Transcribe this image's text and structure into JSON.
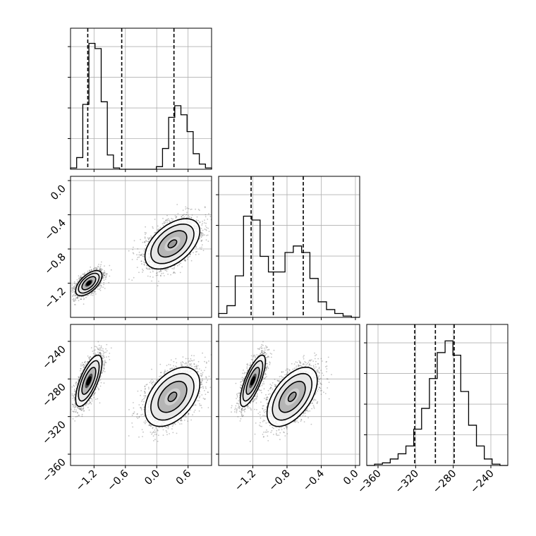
{
  "chart_data": {
    "type": "scatter",
    "parameters": [
      {
        "ylabel": "",
        "xlabel": "",
        "ticks": [
          "-1.2",
          "-0.6",
          "0.0",
          "0.6"
        ],
        "tick_values": [
          -1.2,
          -0.6,
          0.0,
          0.6
        ],
        "range": [
          -1.65,
          1.05
        ]
      },
      {
        "ylabel": "",
        "xlabel": "",
        "ticks": [
          "-1.2",
          "-0.8",
          "-0.4",
          "0.0"
        ],
        "tick_values": [
          -1.2,
          -0.8,
          -0.4,
          0.0
        ],
        "range": [
          -1.6,
          0.05
        ]
      },
      {
        "ylabel": "",
        "xlabel": "",
        "ticks": [
          "-360",
          "-320",
          "-280",
          "-240"
        ],
        "tick_values": [
          -360,
          -320,
          -280,
          -240
        ],
        "range": [
          -372,
          -222
        ]
      }
    ],
    "quantiles": [
      [
        -1.32,
        -0.67,
        0.33
      ],
      [
        -1.22,
        -0.96,
        -0.61
      ],
      [
        -321,
        -299,
        -279
      ]
    ],
    "histograms": [
      {
        "counts": [
          0.01,
          0.09,
          0.5,
          0.97,
          0.93,
          0.52,
          0.11,
          0.01,
          0,
          0,
          0,
          0,
          0,
          0,
          0.02,
          0.16,
          0.4,
          0.49,
          0.42,
          0.29,
          0.12,
          0.04,
          0.01
        ]
      },
      {
        "counts": [
          0.03,
          0.09,
          0.32,
          0.78,
          0.75,
          0.47,
          0.35,
          0.35,
          0.5,
          0.55,
          0.5,
          0.3,
          0.12,
          0.06,
          0.03,
          0.01,
          0.0
        ]
      },
      {
        "counts": [
          0.0,
          0.01,
          0.02,
          0.05,
          0.09,
          0.15,
          0.28,
          0.44,
          0.67,
          0.87,
          0.96,
          0.85,
          0.57,
          0.31,
          0.15,
          0.05,
          0.01,
          0.0
        ]
      }
    ],
    "clusters": [
      {
        "weight": 0.47,
        "mean": [
          -1.3,
          -1.2,
          -282
        ],
        "sd": [
          0.12,
          0.07,
          13
        ],
        "corr": [
          [
            1,
            0.6,
            0.7
          ],
          [
            0.6,
            1,
            0.75
          ],
          [
            0.7,
            0.75,
            1
          ]
        ]
      },
      {
        "weight": 0.53,
        "mean": [
          0.3,
          -0.74,
          -299
        ],
        "sd": [
          0.25,
          0.14,
          15
        ],
        "corr": [
          [
            1,
            0.5,
            0.45
          ],
          [
            0.5,
            1,
            0.55
          ],
          [
            0.45,
            0.55,
            1
          ]
        ]
      }
    ],
    "contour_levels_sigma": [
      0.6,
      1.1,
      1.65,
      2.1
    ],
    "grid": true,
    "colors": {
      "points": "#555555",
      "contour": "#000000",
      "grid": "#b0b0b0",
      "density_dark": "#000000",
      "density_light": "#f4f4f4"
    }
  }
}
